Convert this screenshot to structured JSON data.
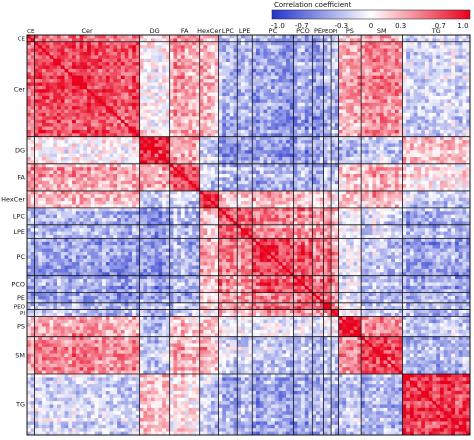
{
  "chart_data": {
    "type": "heatmap",
    "title": "",
    "colorbar": {
      "title": "Correlation coefficient",
      "ticks": [
        "-1.0",
        "-0.7",
        "-0.3",
        "0",
        "0.3",
        "0.7",
        "1.0"
      ],
      "range": [
        -1.0,
        1.0
      ],
      "colors": {
        "neg": "#2233cc",
        "mid": "#ffffff",
        "pos": "#e8001c"
      },
      "placement": "top-right"
    },
    "lipid_classes": [
      {
        "name": "CE",
        "n": 2
      },
      {
        "name": "Cer",
        "n": 28
      },
      {
        "name": "DG",
        "n": 8
      },
      {
        "name": "FA",
        "n": 8
      },
      {
        "name": "HexCer",
        "n": 5
      },
      {
        "name": "LPC",
        "n": 5
      },
      {
        "name": "LPE",
        "n": 4
      },
      {
        "name": "PC",
        "n": 11
      },
      {
        "name": "PCO",
        "n": 5
      },
      {
        "name": "PE",
        "n": 3
      },
      {
        "name": "PEO",
        "n": 2
      },
      {
        "name": "PI",
        "n": 2
      },
      {
        "name": "PS",
        "n": 6
      },
      {
        "name": "SM",
        "n": 11
      },
      {
        "name": "TG",
        "n": 18
      }
    ],
    "diagonal_value": 1.0,
    "note_values": "Block-average correlations between lipid classes (rows x columns, symmetric)",
    "block_means": [
      [
        1.0,
        0.6,
        0.1,
        0.45,
        0.25,
        -0.25,
        -0.25,
        -0.35,
        -0.35,
        -0.35,
        -0.3,
        -0.2,
        0.2,
        0.4,
        -0.1
      ],
      [
        0.6,
        0.75,
        0.05,
        0.4,
        0.3,
        -0.35,
        -0.3,
        -0.45,
        -0.4,
        -0.4,
        -0.35,
        -0.25,
        0.35,
        0.5,
        -0.15
      ],
      [
        0.1,
        0.05,
        0.85,
        0.35,
        -0.2,
        -0.55,
        -0.45,
        -0.5,
        -0.45,
        -0.4,
        -0.4,
        -0.3,
        -0.35,
        -0.25,
        0.25
      ],
      [
        0.45,
        0.4,
        0.35,
        0.7,
        -0.15,
        -0.3,
        -0.25,
        -0.35,
        -0.35,
        -0.3,
        -0.3,
        -0.2,
        0.2,
        0.3,
        0.15
      ],
      [
        0.25,
        0.3,
        -0.2,
        -0.15,
        0.75,
        0.25,
        0.2,
        0.35,
        0.25,
        0.2,
        0.15,
        0.1,
        0.2,
        0.3,
        -0.2
      ],
      [
        -0.25,
        -0.35,
        -0.55,
        -0.3,
        0.25,
        0.7,
        0.65,
        0.5,
        0.45,
        0.4,
        0.35,
        0.3,
        -0.05,
        -0.15,
        -0.35
      ],
      [
        -0.25,
        -0.3,
        -0.45,
        -0.25,
        0.2,
        0.65,
        0.7,
        0.5,
        0.45,
        0.45,
        0.4,
        0.3,
        -0.05,
        -0.15,
        -0.3
      ],
      [
        -0.35,
        -0.45,
        -0.5,
        -0.35,
        0.35,
        0.5,
        0.5,
        0.7,
        0.6,
        0.5,
        0.45,
        0.4,
        -0.1,
        -0.3,
        -0.4
      ],
      [
        -0.35,
        -0.4,
        -0.45,
        -0.35,
        0.25,
        0.45,
        0.45,
        0.6,
        0.75,
        0.55,
        0.6,
        0.4,
        -0.1,
        -0.3,
        -0.35
      ],
      [
        -0.35,
        -0.4,
        -0.4,
        -0.3,
        0.2,
        0.4,
        0.45,
        0.5,
        0.55,
        0.75,
        0.55,
        0.45,
        -0.1,
        -0.3,
        -0.3
      ],
      [
        -0.3,
        -0.35,
        -0.4,
        -0.3,
        0.15,
        0.35,
        0.4,
        0.45,
        0.6,
        0.55,
        0.8,
        0.4,
        -0.05,
        -0.25,
        -0.3
      ],
      [
        -0.2,
        -0.25,
        -0.3,
        -0.2,
        0.1,
        0.3,
        0.3,
        0.4,
        0.4,
        0.45,
        0.4,
        0.8,
        0.05,
        -0.2,
        -0.25
      ],
      [
        0.2,
        0.35,
        -0.35,
        0.2,
        0.2,
        -0.05,
        -0.05,
        -0.1,
        -0.1,
        -0.1,
        -0.05,
        0.05,
        0.85,
        0.45,
        -0.25
      ],
      [
        0.4,
        0.5,
        -0.25,
        0.3,
        0.3,
        -0.15,
        -0.15,
        -0.3,
        -0.3,
        -0.3,
        -0.25,
        -0.2,
        0.45,
        0.75,
        -0.3
      ],
      [
        -0.1,
        -0.15,
        0.25,
        0.15,
        -0.2,
        -0.35,
        -0.3,
        -0.4,
        -0.35,
        -0.3,
        -0.3,
        -0.25,
        -0.25,
        -0.3,
        0.85
      ]
    ]
  }
}
